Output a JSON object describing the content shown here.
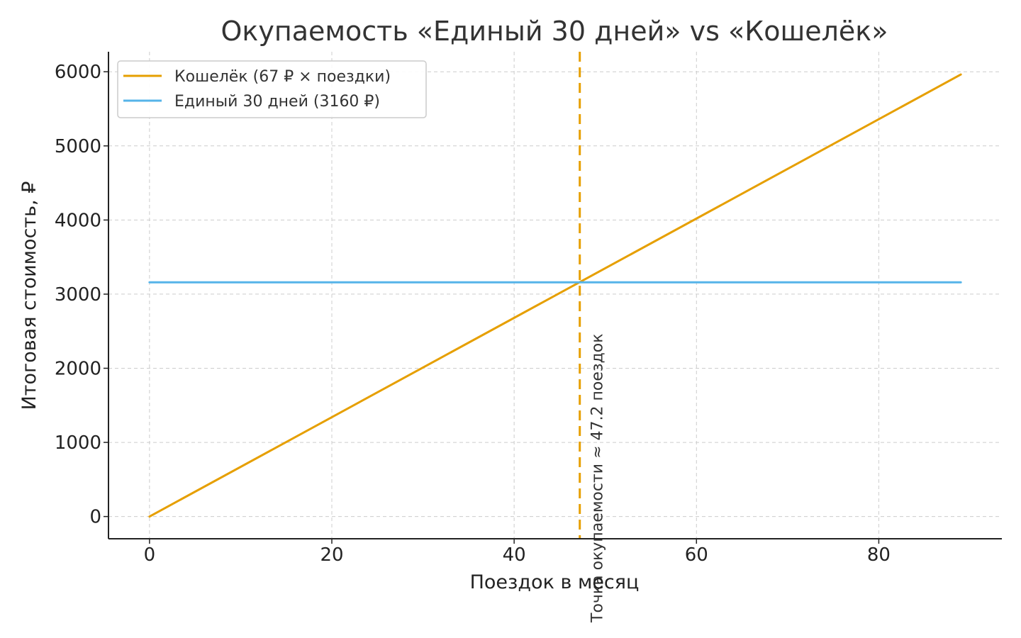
{
  "chart_data": {
    "type": "line",
    "title": "Окупаемость «Единый 30 дней» vs «Кошелёк»",
    "xlabel": "Поездок в месяц",
    "ylabel": "Итоговая стоимость, ₽",
    "xlim": [
      -4.5,
      93.5
    ],
    "ylim": [
      -300,
      6270
    ],
    "x_ticks": [
      0,
      20,
      40,
      60,
      80
    ],
    "y_ticks": [
      0,
      1000,
      2000,
      3000,
      4000,
      5000,
      6000
    ],
    "grid": true,
    "legend_position": "top-left",
    "series": [
      {
        "name": "Кошелёк (67 ₽ × поездки)",
        "color": "#E69F00",
        "x": [
          0,
          89
        ],
        "y": [
          0,
          5963
        ]
      },
      {
        "name": "Единый 30 дней (3160 ₽)",
        "color": "#56B4E9",
        "x": [
          0,
          89
        ],
        "y": [
          3160,
          3160
        ]
      }
    ],
    "annotations": [
      {
        "type": "vline",
        "x": 47.2,
        "color": "#E69F00",
        "text": "Точка окупаемости ≈ 47.2 поездок"
      }
    ]
  }
}
